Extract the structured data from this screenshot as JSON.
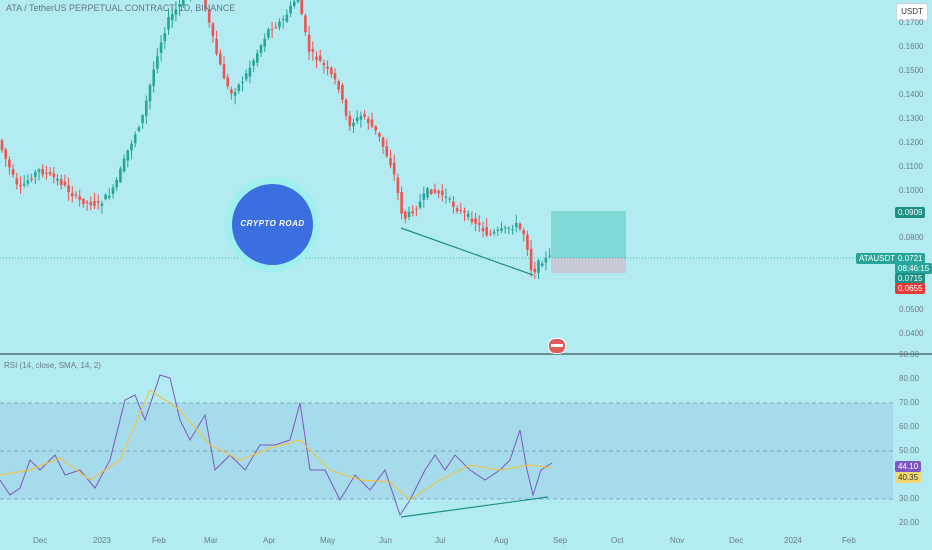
{
  "header": {
    "title": "ATA / TetherUS PERPETUAL CONTRACT, 1D, BINANCE",
    "currency_button": "USDT"
  },
  "price_axis": {
    "ticks": [
      "0.1700",
      "0.1600",
      "0.1500",
      "0.1400",
      "0.1300",
      "0.1200",
      "0.1100",
      "0.1000",
      "0.0900",
      "0.0800",
      "0.0700",
      "0.0600",
      "0.0500",
      "0.0400"
    ],
    "badge_target": "0.0909",
    "badge_symbol": "ATAUSDT.P",
    "badge_price": "0.0721",
    "badge_countdown": "08:46:15",
    "badge_entry": "0.0715",
    "badge_stop": "0.0655"
  },
  "rsi_axis": {
    "ticks": [
      "90.00",
      "80.00",
      "70.00",
      "60.00",
      "50.00",
      "40.00",
      "30.00",
      "20.00"
    ],
    "value_rsi": "44.10",
    "value_ma": "40.35"
  },
  "time_axis": {
    "ticks": [
      "Dec",
      "2023",
      "Feb",
      "Mar",
      "Apr",
      "May",
      "Jun",
      "Jul",
      "Aug",
      "Sep",
      "Oct",
      "Nov",
      "Dec",
      "2024",
      "Feb"
    ]
  },
  "rsi_panel": {
    "label": "RSI (14, close, SMA, 14, 2)"
  },
  "logo": {
    "text": "CRYPTO ROAD"
  },
  "colors": {
    "background": "#b2ebf2",
    "up_candle": "#26a69a",
    "down_candle": "#ef5350",
    "rsi_line": "#7e57c2",
    "rsi_ma": "#fbc02d",
    "target_zone": "#80d8d6",
    "stop_zone": "#c7c9d6"
  },
  "icons": {
    "flag": "us-flag-icon"
  }
}
